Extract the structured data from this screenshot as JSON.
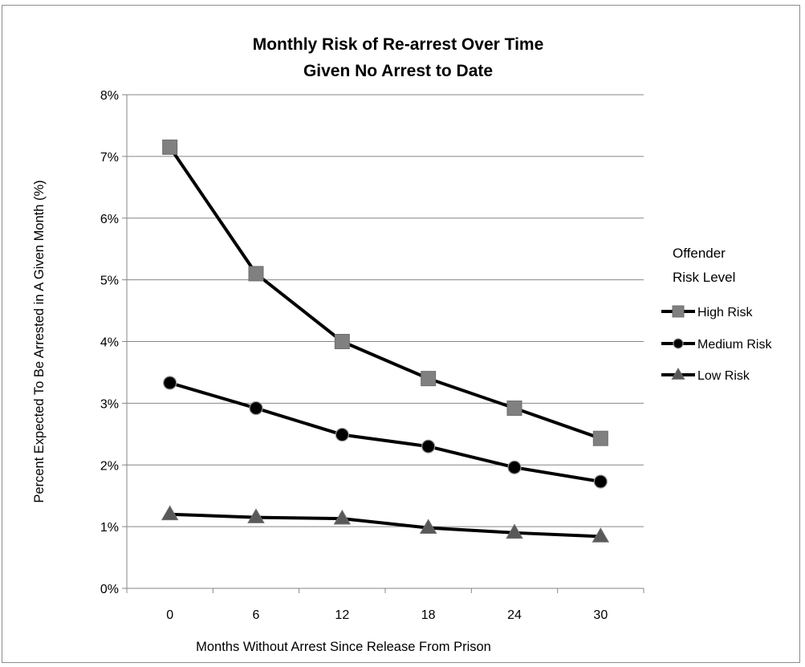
{
  "chart_data": {
    "type": "line",
    "title": [
      "Monthly Risk of Re-arrest Over Time",
      "Given No Arrest to Date"
    ],
    "xlabel": "Months Without  Arrest Since Release From Prison",
    "ylabel": "Percent Expected To Be Arrested in A Given Month (%)",
    "categories": [
      "0",
      "6",
      "12",
      "18",
      "24",
      "30"
    ],
    "yticks": [
      "0%",
      "1%",
      "2%",
      "3%",
      "4%",
      "5%",
      "6%",
      "7%",
      "8%"
    ],
    "ylim": [
      0,
      8
    ],
    "grid": true,
    "legend_position": "right",
    "legend_title": [
      "Offender",
      "Risk Level"
    ],
    "series": [
      {
        "name": "High Risk",
        "marker": "square",
        "color": "#808080",
        "values": [
          7.15,
          5.1,
          4.0,
          3.4,
          2.92,
          2.43
        ]
      },
      {
        "name": "Medium Risk",
        "marker": "circle",
        "color": "#000000",
        "values": [
          3.33,
          2.92,
          2.49,
          2.3,
          1.96,
          1.73
        ]
      },
      {
        "name": "Low Risk",
        "marker": "triangle",
        "color": "#595959",
        "values": [
          1.2,
          1.15,
          1.13,
          0.98,
          0.9,
          0.84
        ]
      }
    ]
  }
}
